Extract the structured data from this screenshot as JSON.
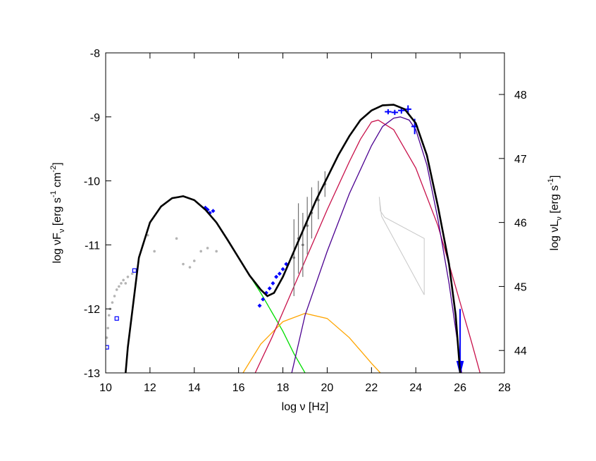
{
  "chart_data": {
    "type": "line",
    "x_label": [
      "log ν [Hz]"
    ],
    "y_label": [
      "log νF",
      "ν",
      " [erg s",
      "-1",
      " cm",
      "-2",
      "]"
    ],
    "y2_label": [
      "log νL",
      "ν",
      " [erg s",
      "-1",
      "]"
    ],
    "xlim": [
      10,
      28
    ],
    "xticks": [
      10,
      12,
      14,
      16,
      18,
      20,
      22,
      24,
      26,
      28
    ],
    "ylim": [
      -13,
      -8
    ],
    "yticks": [
      -13,
      -12,
      -11,
      -10,
      -9,
      -8
    ],
    "y2lim": [
      43.65,
      48.65
    ],
    "y2ticks": [
      44,
      45,
      46,
      47,
      48
    ],
    "series": [
      {
        "kind": "line",
        "color": "#c8c8c8",
        "width": 1,
        "x": [
          22.35,
          22.4,
          22.6,
          24.38,
          24.38,
          22.45,
          22.35
        ],
        "values": [
          -10.25,
          -10.47,
          -10.57,
          -10.9,
          -11.78,
          -10.55,
          -10.25
        ]
      },
      {
        "kind": "line",
        "color": "#00dd00",
        "width": 1.3,
        "x": [
          15,
          16,
          16.5,
          17,
          17.5,
          18,
          18.5,
          19
        ],
        "values": [
          -10.65,
          -11.2,
          -11.48,
          -11.75,
          -12.05,
          -12.35,
          -12.7,
          -13
        ]
      },
      {
        "kind": "line",
        "color": "#ffa500",
        "width": 1.3,
        "x": [
          16.2,
          17,
          18,
          19,
          20,
          21,
          22,
          22.4
        ],
        "values": [
          -13,
          -12.55,
          -12.2,
          -12.07,
          -12.15,
          -12.45,
          -12.85,
          -13
        ]
      },
      {
        "kind": "line",
        "color": "#c8104a",
        "width": 1.3,
        "x": [
          16.75,
          17.5,
          18,
          19,
          20,
          21,
          21.5,
          22,
          22.3,
          23,
          24,
          25,
          26,
          26.5,
          26.9
        ],
        "values": [
          -13,
          -12.45,
          -12.05,
          -11.25,
          -10.45,
          -9.7,
          -9.35,
          -9.08,
          -9.05,
          -9.2,
          -9.8,
          -10.7,
          -11.9,
          -12.5,
          -13
        ]
      },
      {
        "kind": "line",
        "color": "#4b0090",
        "width": 1.3,
        "x": [
          18.4,
          19,
          20,
          21,
          22,
          22.5,
          23,
          23.3,
          23.7,
          24,
          24.5,
          25,
          25.5,
          26,
          26.07
        ],
        "values": [
          -13,
          -12.1,
          -11.1,
          -10.2,
          -9.45,
          -9.15,
          -9.02,
          -9.0,
          -9.05,
          -9.2,
          -9.75,
          -10.6,
          -11.6,
          -12.8,
          -13
        ]
      },
      {
        "kind": "points",
        "marker": "dot",
        "color": "#b4b4b4",
        "x": [
          10.05,
          10.1,
          10.15,
          10.2,
          10.3,
          10.4,
          10.5,
          10.6,
          10.7,
          10.8,
          10.9,
          11.0,
          11.2,
          11.9,
          12.2,
          13.2,
          13.5,
          13.8,
          14.0,
          14.3,
          14.6,
          15.0
        ],
        "values": [
          -12.45,
          -12.3,
          -12.1,
          -12.0,
          -11.9,
          -11.8,
          -11.7,
          -11.65,
          -11.6,
          -11.55,
          -11.6,
          -11.5,
          -11.45,
          -10.85,
          -11.1,
          -10.9,
          -11.3,
          -11.35,
          -11.25,
          -11.1,
          -11.05,
          -11.1
        ]
      },
      {
        "kind": "points",
        "marker": "dot",
        "color": "#707070",
        "x": [
          18.5,
          18.7,
          18.9,
          19.1,
          19.3,
          19.6,
          19.9
        ],
        "values": [
          -11.2,
          -10.9,
          -11.0,
          -10.7,
          -10.5,
          -10.3,
          -10.05
        ],
        "yerr": [
          0.6,
          0.55,
          0.5,
          0.45,
          0.4,
          0.3,
          0.2
        ]
      },
      {
        "kind": "points",
        "marker": "diamond",
        "color": "#0000ff",
        "x": [
          14.5,
          14.6,
          14.7,
          14.85,
          16.95,
          17.1,
          17.25,
          17.4,
          17.55,
          17.7,
          17.85,
          18.0,
          18.15
        ],
        "values": [
          -10.42,
          -10.45,
          -10.5,
          -10.47,
          -11.95,
          -11.85,
          -11.75,
          -11.68,
          -11.6,
          -11.5,
          -11.45,
          -11.38,
          -11.3
        ]
      },
      {
        "kind": "points",
        "marker": "square",
        "color": "#0000ff",
        "x": [
          10.05,
          10.5,
          11.3
        ],
        "values": [
          -12.6,
          -12.15,
          -11.4
        ]
      },
      {
        "kind": "points",
        "marker": "cross",
        "color": "#0000ff",
        "x": [
          22.75,
          23.05,
          23.35,
          23.65,
          23.95
        ],
        "values": [
          -8.92,
          -8.93,
          -8.9,
          -8.88,
          -9.15
        ],
        "xerr": [
          0.15,
          0.15,
          0.15,
          0.15,
          0.15
        ],
        "yerr": [
          0.04,
          0.04,
          0.05,
          0.06,
          0.12
        ]
      },
      {
        "kind": "points",
        "marker": "upper-limit",
        "color": "#0000ff",
        "x": [
          26.0
        ],
        "values": [
          -12.0
        ]
      },
      {
        "kind": "line",
        "color": "#000000",
        "width": 2.6,
        "x": [
          10.9,
          11,
          11.5,
          12,
          12.5,
          13,
          13.5,
          14,
          14.5,
          15,
          15.5,
          16,
          16.5,
          17,
          17.3,
          17.6,
          18,
          18.5,
          19,
          19.5,
          20,
          20.5,
          21,
          21.5,
          22,
          22.5,
          23,
          23.5,
          24,
          24.5,
          25,
          25.5,
          25.8,
          26
        ],
        "values": [
          -13,
          -12.6,
          -11.2,
          -10.65,
          -10.4,
          -10.27,
          -10.24,
          -10.3,
          -10.45,
          -10.65,
          -10.92,
          -11.2,
          -11.48,
          -11.7,
          -11.8,
          -11.75,
          -11.5,
          -11.1,
          -10.7,
          -10.3,
          -9.95,
          -9.6,
          -9.3,
          -9.05,
          -8.9,
          -8.82,
          -8.81,
          -8.88,
          -9.1,
          -9.6,
          -10.4,
          -11.3,
          -12.1,
          -13
        ]
      }
    ]
  }
}
